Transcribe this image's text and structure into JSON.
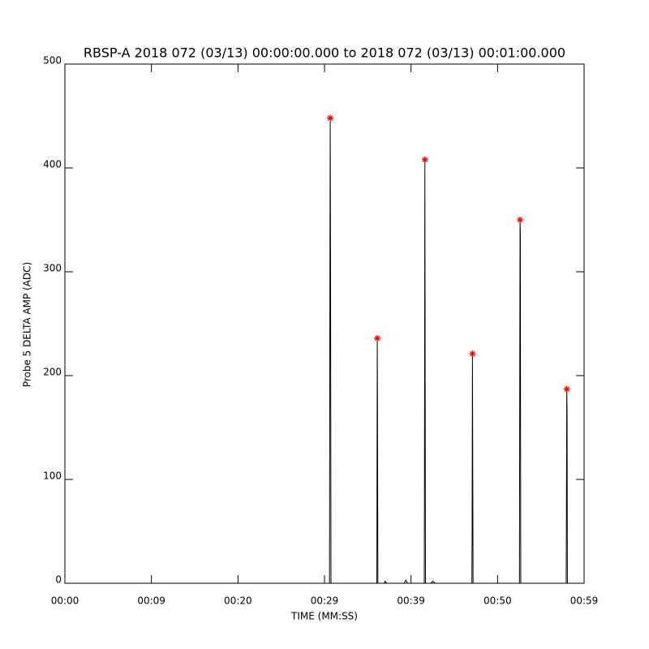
{
  "chart_data": {
    "type": "line",
    "title": "RBSP-A 2018 072 (03/13) 00:00:00.000 to 2018 072 (03/13) 00:01:00.000",
    "x_label": "TIME (MM:SS)",
    "y_label": "Probe 5 DELTA AMP (ADC)",
    "xlim": [
      0,
      60
    ],
    "xticks": [
      {
        "value": 0,
        "label": "00:00"
      },
      {
        "value": 10,
        "label": "00:09"
      },
      {
        "value": 20,
        "label": "00:20"
      },
      {
        "value": 30,
        "label": "00:29"
      },
      {
        "value": 40,
        "label": "00:39"
      },
      {
        "value": 50,
        "label": "00:50"
      },
      {
        "value": 60,
        "label": "00:59"
      }
    ],
    "ylim": [
      0,
      500
    ],
    "yticks": [
      0,
      100,
      200,
      300,
      400,
      500
    ],
    "series": [
      {
        "color": "#000000",
        "style": "line",
        "x": [
          28.9,
          30.58,
          30.62,
          30.66,
          30.7,
          30.75,
          36.05,
          36.08,
          36.1,
          36.13,
          36.17,
          36.9,
          37.0,
          37.2,
          39.2,
          39.4,
          39.6,
          41.53,
          41.56,
          41.6,
          41.63,
          41.67,
          42.3,
          42.5,
          42.8,
          47.03,
          47.06,
          47.1,
          47.13,
          47.17,
          52.53,
          52.56,
          52.6,
          52.63,
          52.68,
          57.93,
          57.96,
          58.0,
          58.03,
          58.07
        ],
        "values": [
          0,
          0,
          257,
          448,
          307,
          0,
          0,
          147,
          236,
          150,
          0,
          0,
          2,
          0,
          0,
          3,
          0,
          0,
          133,
          408,
          216,
          0,
          0,
          2,
          0,
          0,
          50,
          221,
          122,
          0,
          0,
          176,
          350,
          338,
          0,
          0,
          73,
          187,
          167,
          0
        ]
      },
      {
        "color": "#ff0000",
        "style": "star",
        "x": [
          30.66,
          36.1,
          41.6,
          47.1,
          52.6,
          58.0
        ],
        "values": [
          448,
          236,
          408,
          221,
          350,
          187
        ]
      }
    ]
  }
}
